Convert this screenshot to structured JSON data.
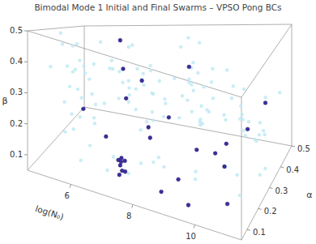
{
  "chart_data": {
    "type": "scatter3d",
    "title": "Bimodal Mode 1 Initial and Final Swarms – VPSO Pong BCs",
    "x_label": "log(N₀)",
    "y_label": "α",
    "z_label": "β",
    "xlim": [
      4.6,
      11.5
    ],
    "ylim": [
      0.05,
      0.5
    ],
    "zlim": [
      0.05,
      0.5
    ],
    "xticks": [
      6,
      8,
      10
    ],
    "yticks": [
      0.1,
      0.2,
      0.3,
      0.4,
      0.5
    ],
    "zticks": [
      0.1,
      0.2,
      0.3,
      0.4,
      0.5
    ],
    "series": [
      {
        "color": "#bfeaf3",
        "marker": "circle",
        "x": [
          5.1,
          9.8,
          7.3,
          10.6,
          6.2,
          8.9,
          4.9,
          11.2,
          7.8,
          6.7,
          9.3,
          5.6,
          10.1,
          8.2,
          7.0,
          11.0,
          5.3,
          9.6,
          6.9,
          8.5,
          10.8,
          4.8,
          7.6,
          9.1,
          6.0,
          11.3,
          8.7,
          5.9,
          10.3,
          7.2,
          6.4,
          9.9,
          5.0,
          8.0,
          10.5,
          7.5,
          6.6,
          11.1,
          9.4,
          5.4,
          8.3,
          10.0,
          6.1,
          7.9,
          9.7,
          5.2,
          11.4,
          6.8,
          8.6,
          10.2,
          7.1,
          5.7,
          9.0,
          6.3,
          10.9,
          8.1,
          4.7,
          7.7,
          9.5,
          6.5,
          11.0,
          8.4,
          5.5,
          10.4,
          7.4,
          9.2,
          6.0,
          8.8,
          5.8,
          10.7,
          7.0,
          9.8,
          4.9,
          8.9,
          6.6,
          11.2,
          7.6,
          5.3,
          10.1,
          9.0,
          6.2,
          8.0,
          10.6,
          5.1,
          7.3,
          9.4,
          11.3,
          6.8,
          8.5,
          5.6,
          10.3,
          7.9,
          9.6,
          4.8,
          6.4,
          11.0,
          8.2,
          7.1,
          5.9,
          10.0,
          9.1,
          6.9,
          8.7,
          5.0,
          10.8,
          7.5,
          9.9,
          6.1,
          11.4,
          8.3,
          5.4,
          7.8,
          10.4,
          6.7,
          9.3,
          5.7,
          8.1,
          10.9,
          7.2,
          6.3
        ],
        "y": [
          0.32,
          0.11,
          0.45,
          0.21,
          0.08,
          0.38,
          0.27,
          0.15,
          0.49,
          0.19,
          0.34,
          0.42,
          0.07,
          0.26,
          0.13,
          0.4,
          0.23,
          0.3,
          0.17,
          0.47,
          0.1,
          0.36,
          0.22,
          0.44,
          0.29,
          0.09,
          0.33,
          0.18,
          0.41,
          0.25,
          0.48,
          0.12,
          0.37,
          0.2,
          0.31,
          0.06,
          0.43,
          0.28,
          0.16,
          0.39,
          0.24,
          0.46,
          0.14,
          0.35,
          0.08,
          0.27,
          0.42,
          0.19,
          0.11,
          0.33,
          0.45,
          0.21,
          0.3,
          0.13,
          0.38,
          0.17,
          0.44,
          0.09,
          0.26,
          0.4,
          0.15,
          0.35,
          0.23,
          0.48,
          0.12,
          0.31,
          0.2,
          0.43,
          0.07,
          0.28,
          0.37,
          0.16,
          0.24,
          0.46,
          0.1,
          0.34,
          0.19,
          0.41,
          0.29,
          0.14,
          0.47,
          0.22,
          0.36,
          0.11,
          0.39,
          0.18,
          0.27,
          0.44,
          0.08,
          0.32,
          0.25,
          0.49,
          0.13,
          0.3,
          0.42,
          0.21,
          0.17,
          0.35,
          0.09,
          0.45,
          0.26,
          0.12,
          0.38,
          0.23,
          0.4,
          0.15,
          0.33,
          0.06,
          0.29,
          0.44,
          0.19,
          0.36,
          0.1,
          0.47,
          0.24,
          0.31,
          0.14,
          0.41,
          0.22,
          0.37
        ],
        "z": [
          0.44,
          0.18,
          0.27,
          0.39,
          0.12,
          0.48,
          0.21,
          0.33,
          0.09,
          0.41,
          0.25,
          0.15,
          0.36,
          0.06,
          0.46,
          0.29,
          0.19,
          0.38,
          0.11,
          0.31,
          0.23,
          0.42,
          0.08,
          0.35,
          0.47,
          0.16,
          0.28,
          0.4,
          0.13,
          0.49,
          0.2,
          0.34,
          0.1,
          0.43,
          0.26,
          0.37,
          0.14,
          0.22,
          0.45,
          0.07,
          0.32,
          0.17,
          0.39,
          0.24,
          0.48,
          0.11,
          0.3,
          0.41,
          0.19,
          0.36,
          0.09,
          0.27,
          0.44,
          0.15,
          0.21,
          0.46,
          0.33,
          0.12,
          0.38,
          0.25,
          0.18,
          0.47,
          0.29,
          0.06,
          0.4,
          0.23,
          0.35,
          0.13,
          0.42,
          0.28,
          0.1,
          0.37,
          0.49,
          0.16,
          0.31,
          0.2,
          0.43,
          0.08,
          0.26,
          0.45,
          0.14,
          0.34,
          0.22,
          0.39,
          0.17,
          0.48,
          0.11,
          0.3,
          0.41,
          0.24,
          0.46,
          0.19,
          0.36,
          0.07,
          0.27,
          0.43,
          0.13,
          0.32,
          0.4,
          0.21,
          0.38,
          0.09,
          0.29,
          0.45,
          0.15,
          0.35,
          0.25,
          0.42,
          0.12,
          0.47,
          0.31,
          0.18,
          0.44,
          0.23,
          0.06,
          0.37,
          0.28,
          0.16,
          0.49,
          0.33
        ]
      },
      {
        "color": "#3a2e9c",
        "marker": "circle",
        "x": [
          7.2,
          7.3,
          7.1,
          7.25,
          7.35,
          7.15,
          7.4,
          7.2,
          6.0,
          6.3,
          7.0,
          8.2,
          9.8,
          10.6,
          11.0,
          10.4,
          9.2,
          8.8,
          9.6,
          7.9,
          5.6,
          6.8,
          8.4,
          10.9,
          9.0,
          8.0,
          6.5,
          10.2
        ],
        "y": [
          0.15,
          0.14,
          0.16,
          0.13,
          0.15,
          0.17,
          0.14,
          0.16,
          0.45,
          0.4,
          0.38,
          0.3,
          0.28,
          0.35,
          0.4,
          0.2,
          0.12,
          0.08,
          0.1,
          0.22,
          0.25,
          0.3,
          0.42,
          0.09,
          0.33,
          0.18,
          0.21,
          0.27
        ],
        "z": [
          0.1,
          0.09,
          0.11,
          0.08,
          0.12,
          0.1,
          0.09,
          0.12,
          0.44,
          0.33,
          0.3,
          0.22,
          0.14,
          0.2,
          0.27,
          0.16,
          0.13,
          0.1,
          0.07,
          0.18,
          0.21,
          0.26,
          0.36,
          0.12,
          0.1,
          0.24,
          0.15,
          0.19
        ]
      }
    ]
  }
}
